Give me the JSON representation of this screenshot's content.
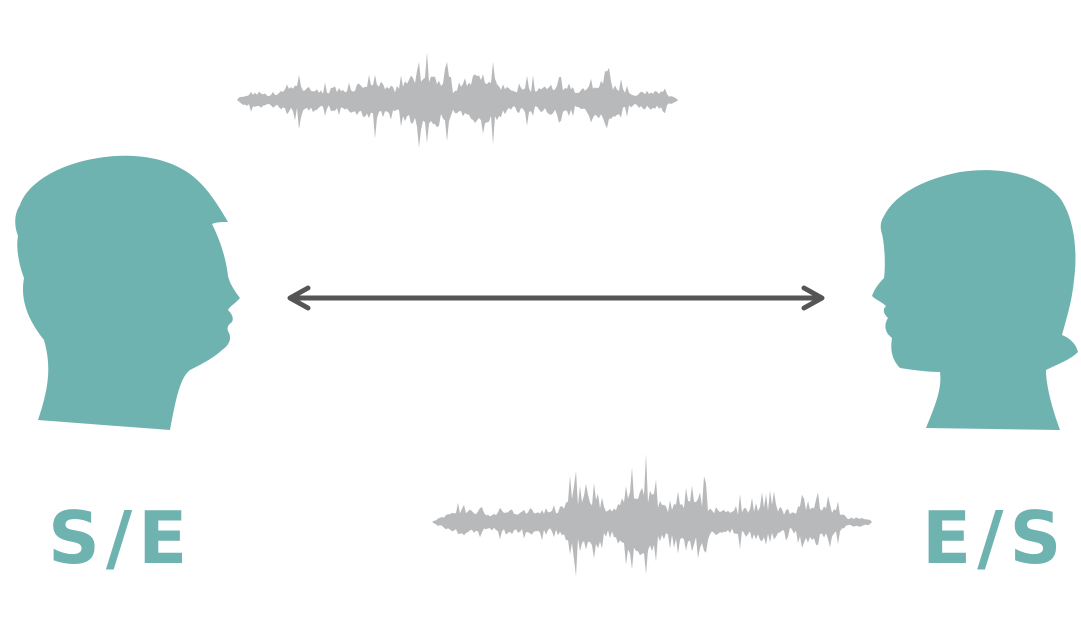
{
  "colors": {
    "silhouette": "#6fb3b1",
    "waveform": "#b8b9bb",
    "arrow": "#555555",
    "label": "#6fb3b1"
  },
  "diagram": {
    "left_speaker": {
      "icon": "person-head-silhouette-icon",
      "facing": "right",
      "label": "S/E"
    },
    "right_speaker": {
      "icon": "person-head-silhouette-icon",
      "facing": "left",
      "label": "E/S"
    },
    "connector": {
      "icon": "double-headed-arrow-icon"
    },
    "waveforms": [
      {
        "icon": "audio-waveform-icon",
        "position": "top"
      },
      {
        "icon": "audio-waveform-icon",
        "position": "bottom"
      }
    ]
  }
}
